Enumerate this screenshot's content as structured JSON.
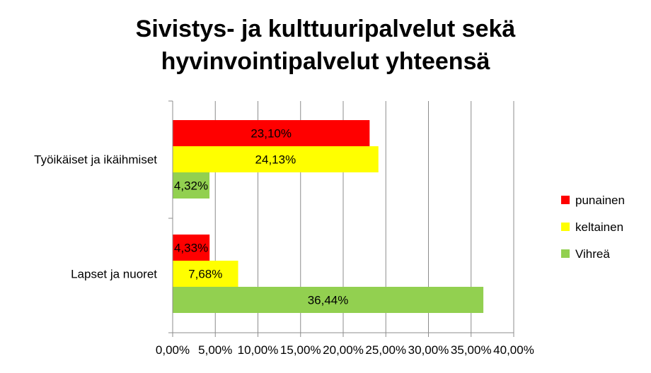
{
  "chart_data": {
    "type": "bar",
    "orientation": "horizontal",
    "title_lines": [
      "Sivistys- ja kulttuuripalvelut sekä",
      "hyvinvointipalvelut yhteensä"
    ],
    "categories": [
      "Lapset ja nuoret",
      "Työikäiset ja ikäihmiset"
    ],
    "series": [
      {
        "name": "punainen",
        "color": "#ff0000",
        "values": [
          4.33,
          23.1
        ],
        "labels": [
          "4,33%",
          "23,10%"
        ]
      },
      {
        "name": "keltainen",
        "color": "#ffff00",
        "values": [
          7.68,
          24.13
        ],
        "labels": [
          "7,68%",
          "24,13%"
        ]
      },
      {
        "name": "Vihreä",
        "color": "#92d050",
        "values": [
          36.44,
          4.32
        ],
        "labels": [
          "36,44%",
          "4,32%"
        ]
      }
    ],
    "xlim": [
      0,
      40
    ],
    "xticks": [
      0,
      5,
      10,
      15,
      20,
      25,
      30,
      35,
      40
    ],
    "xtick_labels": [
      "0,00%",
      "5,00%",
      "10,00%",
      "15,00%",
      "20,00%",
      "25,00%",
      "30,00%",
      "35,00%",
      "40,00%"
    ],
    "grid": "vertical",
    "legend_position": "right",
    "xlabel": "",
    "ylabel": ""
  }
}
